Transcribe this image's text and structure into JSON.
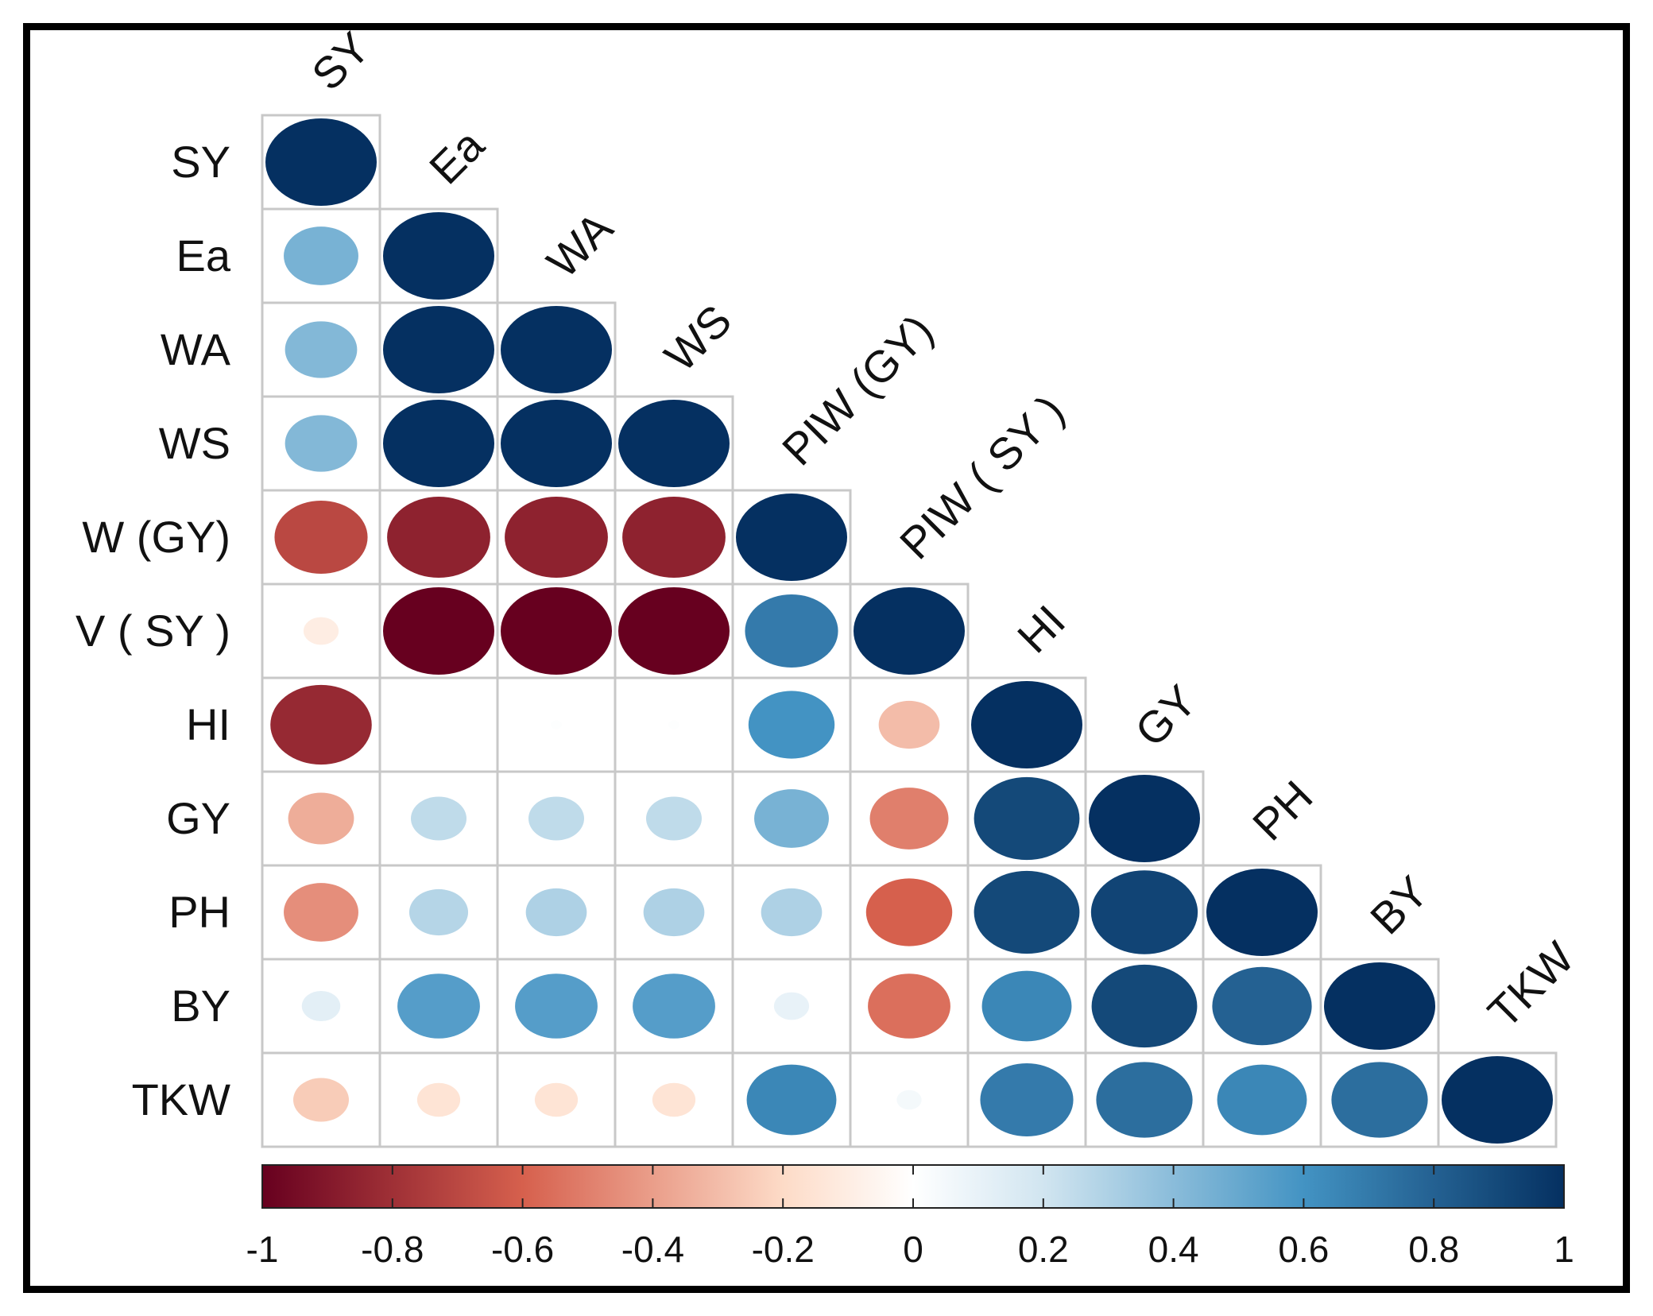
{
  "chart_data": {
    "type": "heatmap",
    "style": "correlation-circles-lower-triangle",
    "variables": [
      "SY",
      "Ea",
      "WA",
      "WS",
      "PIW (GY)",
      "PIW ( SY )",
      "HI",
      "GY",
      "PH",
      "BY",
      "TKW"
    ],
    "row_labels_visible": [
      "SY",
      "Ea",
      "WA",
      "WS",
      "W (GY)",
      "V ( SY )",
      "HI",
      "GY",
      "PH",
      "BY",
      "TKW"
    ],
    "matrix": [
      [
        1.0
      ],
      [
        0.45,
        1.0
      ],
      [
        0.42,
        1.0,
        1.0
      ],
      [
        0.42,
        1.0,
        1.0,
        1.0
      ],
      [
        -0.7,
        -0.86,
        -0.86,
        -0.86,
        1.0
      ],
      [
        -0.1,
        -1.0,
        -1.0,
        -1.0,
        0.7,
        1.0
      ],
      [
        -0.83,
        0.0,
        0.01,
        0.01,
        0.6,
        -0.3,
        1.0
      ],
      [
        -0.35,
        0.25,
        0.25,
        0.25,
        0.45,
        -0.5,
        0.9,
        1.0
      ],
      [
        -0.45,
        0.28,
        0.3,
        0.3,
        0.3,
        -0.6,
        0.9,
        0.92,
        1.0
      ],
      [
        0.12,
        0.55,
        0.55,
        0.55,
        0.1,
        -0.55,
        0.65,
        0.9,
        0.8,
        1.0
      ],
      [
        -0.25,
        -0.15,
        -0.15,
        -0.15,
        0.65,
        0.05,
        0.7,
        0.75,
        0.65,
        0.75,
        1.0
      ]
    ],
    "colorbar": {
      "min": -1,
      "max": 1,
      "ticks": [
        "-1",
        "-0.8",
        "-0.6",
        "-0.4",
        "-0.2",
        "0",
        "0.2",
        "0.4",
        "0.6",
        "0.8",
        "1"
      ]
    },
    "colors": {
      "neg_strong": "#67001f",
      "neg_mid": "#d6604d",
      "neg_light": "#fddbc7",
      "zero": "#ffffff",
      "pos_light": "#d1e5f0",
      "pos_mid": "#4393c3",
      "pos_strong": "#053061"
    }
  }
}
